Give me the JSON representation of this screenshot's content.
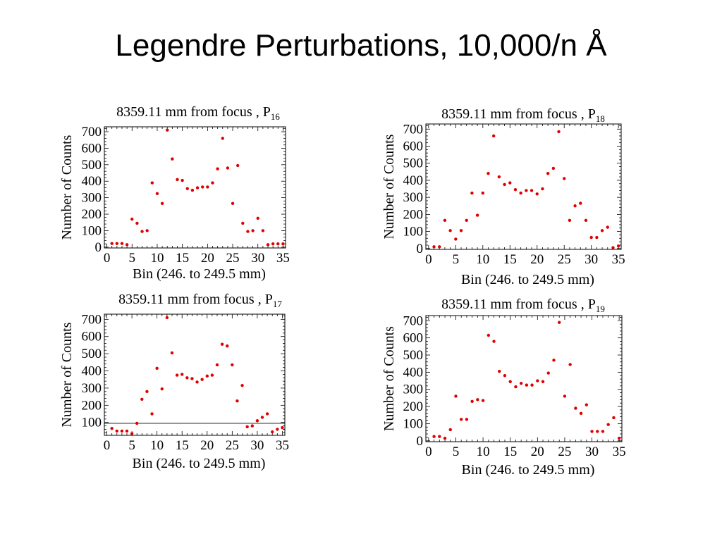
{
  "slide": {
    "title": "Legendre Perturbations, 10,000/n  Å"
  },
  "chart_data": [
    {
      "type": "scatter",
      "title": "8359.11 mm from focus ,  P",
      "title_subscript": "16",
      "xlabel": "Bin (246. to 249.5 mm)",
      "ylabel": "Number of Counts",
      "xlim": [
        -0.5,
        35.5
      ],
      "ylim": [
        -5,
        730
      ],
      "xticks": [
        0,
        5,
        10,
        15,
        20,
        25,
        30,
        35
      ],
      "yticks": [
        0,
        100,
        200,
        300,
        400,
        500,
        600,
        700
      ],
      "grid": false,
      "color": "#e00000",
      "x": [
        1,
        2,
        3,
        4,
        5,
        6,
        7,
        8,
        9,
        10,
        11,
        12,
        13,
        14,
        15,
        16,
        17,
        18,
        19,
        20,
        21,
        22,
        23,
        24,
        25,
        26,
        27,
        28,
        29,
        30,
        31,
        32,
        33,
        34,
        35
      ],
      "y": [
        22,
        22,
        22,
        15,
        170,
        145,
        95,
        100,
        390,
        325,
        265,
        710,
        535,
        410,
        405,
        355,
        345,
        360,
        365,
        365,
        390,
        475,
        660,
        480,
        265,
        495,
        145,
        95,
        100,
        175,
        100,
        15,
        20,
        20,
        20
      ]
    },
    {
      "type": "scatter",
      "title": "8359.11 mm from focus ,  P",
      "title_subscript": "18",
      "xlabel": "Bin (246. to 249.5 mm)",
      "ylabel": "Number of Counts",
      "xlim": [
        -0.5,
        35.5
      ],
      "ylim": [
        -5,
        730
      ],
      "xticks": [
        0,
        5,
        10,
        15,
        20,
        25,
        30,
        35
      ],
      "yticks": [
        0,
        100,
        200,
        300,
        400,
        500,
        600,
        700
      ],
      "grid": false,
      "color": "#e00000",
      "x": [
        1,
        2,
        3,
        4,
        5,
        6,
        7,
        8,
        9,
        10,
        11,
        12,
        13,
        14,
        15,
        16,
        17,
        18,
        19,
        20,
        21,
        22,
        23,
        24,
        25,
        26,
        27,
        28,
        29,
        30,
        31,
        32,
        33,
        34,
        35
      ],
      "y": [
        10,
        10,
        165,
        105,
        55,
        105,
        165,
        325,
        195,
        325,
        440,
        660,
        420,
        375,
        385,
        345,
        325,
        340,
        340,
        320,
        350,
        440,
        470,
        685,
        410,
        165,
        250,
        265,
        165,
        65,
        65,
        105,
        125,
        5,
        15
      ]
    },
    {
      "type": "scatter",
      "title": "8359.11 mm from focus ,  P",
      "title_subscript": "17",
      "xlabel": "Bin (246. to 249.5 mm)",
      "ylabel": "Number of Counts",
      "xlim": [
        -0.5,
        35.5
      ],
      "ylim": [
        25,
        730
      ],
      "xticks": [
        0,
        5,
        10,
        15,
        20,
        25,
        30,
        35
      ],
      "yticks": [
        100,
        200,
        300,
        400,
        500,
        600,
        700
      ],
      "reference_line": 95,
      "grid": false,
      "color": "#e00000",
      "x": [
        1,
        2,
        3,
        4,
        5,
        6,
        7,
        8,
        9,
        10,
        11,
        12,
        13,
        14,
        15,
        16,
        17,
        18,
        19,
        20,
        21,
        22,
        23,
        24,
        25,
        26,
        27,
        28,
        29,
        30,
        31,
        32,
        33,
        34,
        35
      ],
      "y": [
        65,
        50,
        50,
        50,
        35,
        95,
        235,
        280,
        150,
        415,
        295,
        710,
        505,
        375,
        380,
        360,
        355,
        335,
        350,
        370,
        375,
        435,
        555,
        545,
        435,
        225,
        315,
        75,
        80,
        110,
        130,
        150,
        45,
        60,
        70
      ]
    },
    {
      "type": "scatter",
      "title": "8359.11 mm from focus ,  P",
      "title_subscript": "19",
      "xlabel": "Bin (246. to 249.5 mm)",
      "ylabel": "Number of Counts",
      "xlim": [
        -0.5,
        35.5
      ],
      "ylim": [
        -5,
        730
      ],
      "xticks": [
        0,
        5,
        10,
        15,
        20,
        25,
        30,
        35
      ],
      "yticks": [
        0,
        100,
        200,
        300,
        400,
        500,
        600,
        700
      ],
      "grid": false,
      "color": "#e00000",
      "x": [
        1,
        2,
        3,
        4,
        5,
        6,
        7,
        8,
        9,
        10,
        11,
        12,
        13,
        14,
        15,
        16,
        17,
        18,
        19,
        20,
        21,
        22,
        23,
        24,
        25,
        26,
        27,
        28,
        29,
        30,
        31,
        32,
        33,
        34,
        35
      ],
      "y": [
        25,
        25,
        15,
        65,
        260,
        125,
        125,
        230,
        240,
        235,
        615,
        580,
        405,
        380,
        345,
        315,
        335,
        325,
        325,
        350,
        345,
        395,
        470,
        690,
        260,
        445,
        190,
        160,
        210,
        55,
        55,
        55,
        95,
        135,
        15
      ]
    }
  ]
}
